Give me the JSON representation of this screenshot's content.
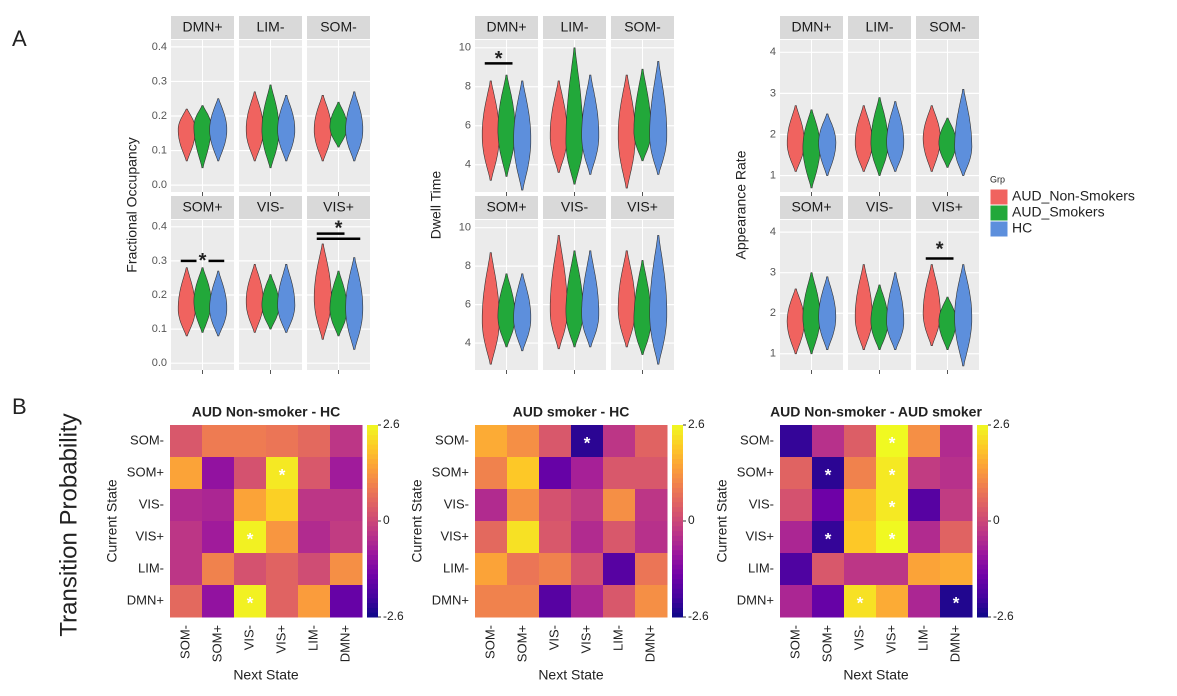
{
  "panel_labels": [
    "A",
    "B"
  ],
  "side_label": "Transition Probability",
  "legend": {
    "title": "Grp",
    "names": [
      "AUD_Non-Smokers",
      "AUD_Smokers",
      "HC"
    ],
    "colors": [
      "#f0635f",
      "#22a83a",
      "#5d8fdc"
    ]
  },
  "chart_data": [
    {
      "type": "violin",
      "ylabel": "Fractional Occupancy",
      "ylim": [
        -0.02,
        0.42
      ],
      "yticks": [
        {
          "value": 0,
          "label": "0.0"
        },
        0.1,
        0.2,
        0.3,
        0.4
      ],
      "grid": true,
      "facets": [
        {
          "title": "DMN+",
          "values": [
            [
              0.07,
              0.16,
              0.22
            ],
            [
              0.05,
              0.17,
              0.23
            ],
            [
              0.07,
              0.16,
              0.25
            ]
          ]
        },
        {
          "title": "LIM-",
          "values": [
            [
              0.07,
              0.16,
              0.27
            ],
            [
              0.05,
              0.16,
              0.29
            ],
            [
              0.07,
              0.16,
              0.26
            ]
          ]
        },
        {
          "title": "SOM-",
          "values": [
            [
              0.07,
              0.16,
              0.26
            ],
            [
              0.11,
              0.17,
              0.24
            ],
            [
              0.07,
              0.16,
              0.27
            ]
          ]
        },
        {
          "title": "SOM+",
          "values": [
            [
              0.08,
              0.16,
              0.28
            ],
            [
              0.09,
              0.18,
              0.28
            ],
            [
              0.08,
              0.16,
              0.27
            ]
          ],
          "sig": {
            "text": "*",
            "text_y": 0.31,
            "bars": [
              {
                "from": 0,
                "to": 1,
                "y": 0.3
              },
              {
                "from": 1,
                "to": 2,
                "y": 0.3
              }
            ]
          }
        },
        {
          "title": "VIS-",
          "values": [
            [
              0.09,
              0.18,
              0.29
            ],
            [
              0.1,
              0.17,
              0.26
            ],
            [
              0.09,
              0.17,
              0.29
            ]
          ]
        },
        {
          "title": "VIS+",
          "values": [
            [
              0.07,
              0.19,
              0.35
            ],
            [
              0.08,
              0.16,
              0.27
            ],
            [
              0.04,
              0.16,
              0.31
            ]
          ],
          "sig": {
            "text": "*",
            "text_y": 0.405,
            "bars": [
              {
                "from": 0,
                "to": 1,
                "y": 0.38
              },
              {
                "from": 0,
                "to": 2,
                "y": 0.365
              }
            ]
          }
        }
      ]
    },
    {
      "type": "violin",
      "ylabel": "Dwell Time",
      "ylim": [
        2.6,
        10.4
      ],
      "yticks": [
        4,
        6,
        8,
        10
      ],
      "grid": true,
      "facets": [
        {
          "title": "DMN+",
          "values": [
            [
              3.2,
              5.5,
              8.3
            ],
            [
              3.4,
              5.8,
              8.6
            ],
            [
              2.7,
              5.3,
              8.3
            ]
          ],
          "sig": {
            "text": "*",
            "text_y": 9.6,
            "bars": [
              {
                "from": 0,
                "to": 1,
                "y": 9.2
              }
            ]
          }
        },
        {
          "title": "LIM-",
          "values": [
            [
              3.6,
              5.5,
              8.3
            ],
            [
              3.0,
              5.2,
              10
            ],
            [
              3.5,
              5.5,
              8.6
            ]
          ]
        },
        {
          "title": "SOM-",
          "values": [
            [
              2.8,
              5.5,
              8.6
            ],
            [
              4.2,
              5.7,
              8.9
            ],
            [
              3.5,
              5.5,
              9.3
            ]
          ]
        },
        {
          "title": "SOM+",
          "values": [
            [
              2.9,
              5.2,
              8.7
            ],
            [
              3.8,
              5.4,
              7.6
            ],
            [
              3.6,
              5.3,
              7.6
            ]
          ]
        },
        {
          "title": "VIS-",
          "values": [
            [
              3.7,
              5.7,
              9.6
            ],
            [
              3.8,
              5.6,
              8.8
            ],
            [
              3.8,
              5.5,
              8.8
            ]
          ]
        },
        {
          "title": "VIS+",
          "values": [
            [
              3.8,
              5.8,
              8.8
            ],
            [
              3.4,
              5.2,
              8.3
            ],
            [
              2.9,
              5.5,
              9.6
            ]
          ]
        }
      ]
    },
    {
      "type": "violin",
      "ylabel": "Appearance Rate",
      "ylim": [
        0.6,
        4.3
      ],
      "yticks": [
        1,
        2,
        3,
        4
      ],
      "grid": true,
      "facets": [
        {
          "title": "DMN+",
          "values": [
            [
              1.1,
              1.8,
              2.7
            ],
            [
              0.7,
              1.7,
              2.6
            ],
            [
              1.0,
              1.8,
              2.5
            ]
          ]
        },
        {
          "title": "LIM-",
          "values": [
            [
              1.1,
              1.8,
              2.7
            ],
            [
              1.0,
              1.8,
              2.9
            ],
            [
              1.1,
              1.8,
              2.8
            ]
          ]
        },
        {
          "title": "SOM-",
          "values": [
            [
              1.1,
              1.9,
              2.7
            ],
            [
              1.2,
              1.8,
              2.4
            ],
            [
              1.0,
              1.7,
              3.1
            ]
          ]
        },
        {
          "title": "SOM+",
          "values": [
            [
              1.0,
              1.8,
              2.6
            ],
            [
              1.0,
              1.9,
              3.0
            ],
            [
              1.1,
              1.9,
              2.9
            ]
          ]
        },
        {
          "title": "VIS-",
          "values": [
            [
              1.1,
              1.9,
              3.2
            ],
            [
              1.1,
              1.8,
              2.7
            ],
            [
              1.1,
              1.8,
              3.0
            ]
          ]
        },
        {
          "title": "VIS+",
          "values": [
            [
              1.2,
              2.0,
              3.2
            ],
            [
              1.1,
              1.8,
              2.4
            ],
            [
              0.7,
              1.9,
              3.2
            ]
          ],
          "sig": {
            "text": "*",
            "text_y": 3.65,
            "bars": [
              {
                "from": 0,
                "to": 1,
                "y": 3.35
              }
            ]
          }
        }
      ]
    },
    {
      "type": "heatmap",
      "title": "AUD Non-smoker - HC",
      "xlabel": "Next State",
      "ylabel": "Current State",
      "rows": [
        "SOM-",
        "SOM+",
        "VIS-",
        "VIS+",
        "LIM-",
        "DMN+"
      ],
      "columns": [
        "SOM-",
        "SOM+",
        "VIS-",
        "VIS+",
        "LIM-",
        "DMN+"
      ],
      "label_colors": [
        "#a3214f",
        "#6b0f2e",
        "#d08aae",
        "#8c2252",
        "#b9c3ea",
        "#3f6fc6"
      ],
      "colormap": "plasma",
      "zlim": [
        -2.6,
        2.6
      ],
      "zticks": [
        2.6,
        0,
        -2.6
      ],
      "z": [
        [
          0.3,
          0.9,
          0.9,
          0.8,
          0.6,
          -0.3
        ],
        [
          1.5,
          -1.0,
          0.2,
          2.4,
          0.3,
          -0.8
        ],
        [
          -0.5,
          -0.6,
          1.5,
          2.1,
          -0.3,
          -0.3
        ],
        [
          -0.3,
          -0.8,
          2.5,
          1.3,
          -0.5,
          -0.2
        ],
        [
          -0.3,
          1.0,
          0.2,
          0.5,
          0.1,
          1.2
        ],
        [
          0.6,
          -1.0,
          2.5,
          0.5,
          1.4,
          -1.6
        ]
      ],
      "annotations": [
        {
          "text": "*",
          "row": 1,
          "col": 3
        },
        {
          "text": "*",
          "row": 3,
          "col": 2
        },
        {
          "text": "*",
          "row": 5,
          "col": 2
        }
      ]
    },
    {
      "type": "heatmap",
      "title": "AUD smoker - HC",
      "xlabel": "Next State",
      "ylabel": "Current State",
      "rows": [
        "SOM-",
        "SOM+",
        "VIS-",
        "VIS+",
        "LIM-",
        "DMN+"
      ],
      "columns": [
        "SOM-",
        "SOM+",
        "VIS-",
        "VIS+",
        "LIM-",
        "DMN+"
      ],
      "label_colors": [
        "#a3214f",
        "#6b0f2e",
        "#d08aae",
        "#8c2252",
        "#b9c3ea",
        "#3f6fc6"
      ],
      "colormap": "plasma",
      "zlim": [
        -2.6,
        2.6
      ],
      "zticks": [
        2.6,
        0,
        -2.6
      ],
      "z": [
        [
          1.6,
          1.2,
          0.3,
          -2.3,
          -0.3,
          0.5
        ],
        [
          1.0,
          2.0,
          -1.6,
          -0.7,
          0.3,
          0.3
        ],
        [
          -0.5,
          1.2,
          0.2,
          -0.2,
          1.2,
          -0.3
        ],
        [
          0.6,
          2.3,
          0.3,
          -0.5,
          0.3,
          -0.4
        ],
        [
          1.5,
          0.8,
          1.0,
          0.2,
          -1.8,
          0.8
        ],
        [
          1.0,
          1.0,
          -1.8,
          -0.6,
          0.3,
          1.2
        ]
      ],
      "annotations": [
        {
          "text": "*",
          "row": 0,
          "col": 3
        }
      ]
    },
    {
      "type": "heatmap",
      "title": "AUD Non-smoker - AUD smoker",
      "xlabel": "Next State",
      "ylabel": "Current State",
      "rows": [
        "SOM-",
        "SOM+",
        "VIS-",
        "VIS+",
        "LIM-",
        "DMN+"
      ],
      "columns": [
        "SOM-",
        "SOM+",
        "VIS-",
        "VIS+",
        "LIM-",
        "DMN+"
      ],
      "label_colors": [
        "#a3214f",
        "#6b0f2e",
        "#d08aae",
        "#8c2252",
        "#b9c3ea",
        "#3f6fc6"
      ],
      "colormap": "plasma",
      "zlim": [
        -2.6,
        2.6
      ],
      "zticks": [
        2.6,
        0,
        -2.6
      ],
      "z": [
        [
          -2.2,
          -0.4,
          0.4,
          2.6,
          1.2,
          -0.5
        ],
        [
          0.5,
          -2.3,
          1.0,
          2.4,
          -0.2,
          -0.4
        ],
        [
          0.2,
          -1.5,
          1.8,
          2.4,
          -1.8,
          -0.2
        ],
        [
          -0.6,
          -2.2,
          2.0,
          2.6,
          -0.5,
          0.5
        ],
        [
          -1.9,
          0.3,
          -0.3,
          -0.3,
          1.5,
          1.6
        ],
        [
          -0.6,
          -1.6,
          2.3,
          1.6,
          -0.6,
          -2.4
        ]
      ],
      "annotations": [
        {
          "text": "*",
          "row": 0,
          "col": 3
        },
        {
          "text": "*",
          "row": 1,
          "col": 1
        },
        {
          "text": "*",
          "row": 1,
          "col": 3
        },
        {
          "text": "*",
          "row": 2,
          "col": 3
        },
        {
          "text": "*",
          "row": 3,
          "col": 1
        },
        {
          "text": "*",
          "row": 3,
          "col": 3
        },
        {
          "text": "*",
          "row": 5,
          "col": 2
        },
        {
          "text": "*",
          "row": 5,
          "col": 5
        }
      ]
    }
  ]
}
